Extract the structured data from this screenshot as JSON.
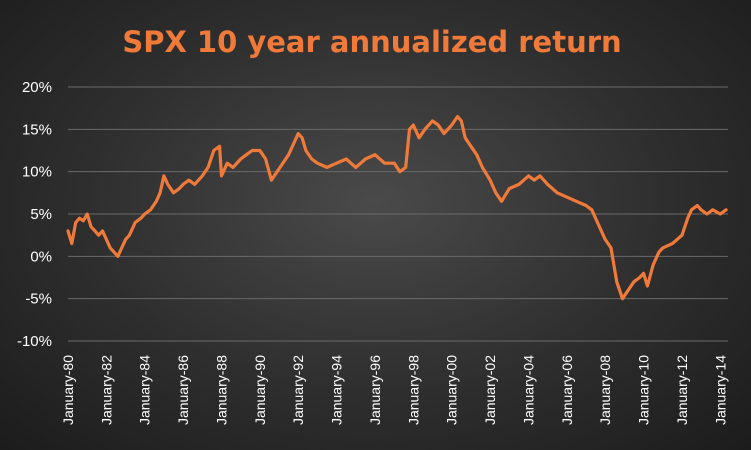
{
  "chart_data": {
    "type": "line",
    "title": "SPX 10 year annualized return",
    "xlabel": "",
    "ylabel": "",
    "ylim": [
      -10,
      20
    ],
    "yticks": [
      -10,
      -5,
      0,
      5,
      10,
      15,
      20
    ],
    "ytick_labels": [
      "-10%",
      "-5%",
      "0%",
      "5%",
      "10%",
      "15%",
      "20%"
    ],
    "xlim": [
      1980,
      2014.4
    ],
    "xticks": [
      1980,
      1982,
      1984,
      1986,
      1988,
      1990,
      1992,
      1994,
      1996,
      1998,
      2000,
      2002,
      2004,
      2006,
      2008,
      2010,
      2012,
      2014
    ],
    "xtick_labels": [
      "January-80",
      "January-82",
      "January-84",
      "January-86",
      "January-88",
      "January-90",
      "January-92",
      "January-94",
      "January-96",
      "January-98",
      "January-00",
      "January-02",
      "January-04",
      "January-06",
      "January-08",
      "January-10",
      "January-12",
      "January-14"
    ],
    "grid": true,
    "legend": "none",
    "colors": {
      "line": "#f07a3a",
      "title": "#f07a3a",
      "text": "#ffffff",
      "grid": "#6a6a6a"
    },
    "series": [
      {
        "values": [
          [
            1980.0,
            3.0
          ],
          [
            1980.2,
            1.5
          ],
          [
            1980.4,
            4.0
          ],
          [
            1980.6,
            4.5
          ],
          [
            1980.8,
            4.2
          ],
          [
            1981.0,
            5.0
          ],
          [
            1981.2,
            3.5
          ],
          [
            1981.4,
            3.0
          ],
          [
            1981.6,
            2.5
          ],
          [
            1981.8,
            3.0
          ],
          [
            1982.0,
            2.0
          ],
          [
            1982.2,
            1.0
          ],
          [
            1982.4,
            0.5
          ],
          [
            1982.6,
            0.0
          ],
          [
            1982.8,
            1.0
          ],
          [
            1983.0,
            2.0
          ],
          [
            1983.2,
            2.5
          ],
          [
            1983.5,
            4.0
          ],
          [
            1983.8,
            4.5
          ],
          [
            1984.0,
            5.0
          ],
          [
            1984.3,
            5.5
          ],
          [
            1984.6,
            6.5
          ],
          [
            1984.8,
            7.5
          ],
          [
            1985.0,
            9.5
          ],
          [
            1985.2,
            8.5
          ],
          [
            1985.5,
            7.5
          ],
          [
            1985.8,
            8.0
          ],
          [
            1986.0,
            8.5
          ],
          [
            1986.3,
            9.0
          ],
          [
            1986.6,
            8.5
          ],
          [
            1987.0,
            9.5
          ],
          [
            1987.3,
            10.5
          ],
          [
            1987.6,
            12.5
          ],
          [
            1987.9,
            13.0
          ],
          [
            1988.0,
            9.5
          ],
          [
            1988.3,
            11.0
          ],
          [
            1988.6,
            10.5
          ],
          [
            1989.0,
            11.5
          ],
          [
            1989.3,
            12.0
          ],
          [
            1989.6,
            12.5
          ],
          [
            1990.0,
            12.5
          ],
          [
            1990.3,
            11.5
          ],
          [
            1990.6,
            9.0
          ],
          [
            1990.9,
            10.0
          ],
          [
            1991.2,
            11.0
          ],
          [
            1991.5,
            12.0
          ],
          [
            1991.8,
            13.5
          ],
          [
            1992.0,
            14.5
          ],
          [
            1992.2,
            14.0
          ],
          [
            1992.4,
            12.5
          ],
          [
            1992.7,
            11.5
          ],
          [
            1993.0,
            11.0
          ],
          [
            1993.5,
            10.5
          ],
          [
            1994.0,
            11.0
          ],
          [
            1994.5,
            11.5
          ],
          [
            1995.0,
            10.5
          ],
          [
            1995.5,
            11.5
          ],
          [
            1996.0,
            12.0
          ],
          [
            1996.5,
            11.0
          ],
          [
            1997.0,
            11.0
          ],
          [
            1997.3,
            10.0
          ],
          [
            1997.6,
            10.5
          ],
          [
            1997.8,
            15.0
          ],
          [
            1998.0,
            15.5
          ],
          [
            1998.3,
            14.0
          ],
          [
            1998.6,
            15.0
          ],
          [
            1999.0,
            16.0
          ],
          [
            1999.3,
            15.5
          ],
          [
            1999.6,
            14.5
          ],
          [
            2000.0,
            15.5
          ],
          [
            2000.3,
            16.5
          ],
          [
            2000.5,
            16.0
          ],
          [
            2000.7,
            14.0
          ],
          [
            2001.0,
            13.0
          ],
          [
            2001.3,
            12.0
          ],
          [
            2001.6,
            10.5
          ],
          [
            2002.0,
            9.0
          ],
          [
            2002.3,
            7.5
          ],
          [
            2002.6,
            6.5
          ],
          [
            2003.0,
            8.0
          ],
          [
            2003.5,
            8.5
          ],
          [
            2004.0,
            9.5
          ],
          [
            2004.3,
            9.0
          ],
          [
            2004.6,
            9.5
          ],
          [
            2005.0,
            8.5
          ],
          [
            2005.5,
            7.5
          ],
          [
            2006.0,
            7.0
          ],
          [
            2006.5,
            6.5
          ],
          [
            2007.0,
            6.0
          ],
          [
            2007.3,
            5.5
          ],
          [
            2007.6,
            4.0
          ],
          [
            2008.0,
            2.0
          ],
          [
            2008.3,
            1.0
          ],
          [
            2008.6,
            -3.0
          ],
          [
            2008.9,
            -5.0
          ],
          [
            2009.2,
            -4.0
          ],
          [
            2009.5,
            -3.0
          ],
          [
            2009.8,
            -2.5
          ],
          [
            2010.0,
            -2.0
          ],
          [
            2010.2,
            -3.5
          ],
          [
            2010.5,
            -1.0
          ],
          [
            2010.8,
            0.5
          ],
          [
            2011.0,
            1.0
          ],
          [
            2011.5,
            1.5
          ],
          [
            2012.0,
            2.5
          ],
          [
            2012.3,
            4.5
          ],
          [
            2012.5,
            5.5
          ],
          [
            2012.8,
            6.0
          ],
          [
            2013.0,
            5.5
          ],
          [
            2013.3,
            5.0
          ],
          [
            2013.6,
            5.5
          ],
          [
            2014.0,
            5.0
          ],
          [
            2014.3,
            5.5
          ]
        ]
      }
    ]
  }
}
